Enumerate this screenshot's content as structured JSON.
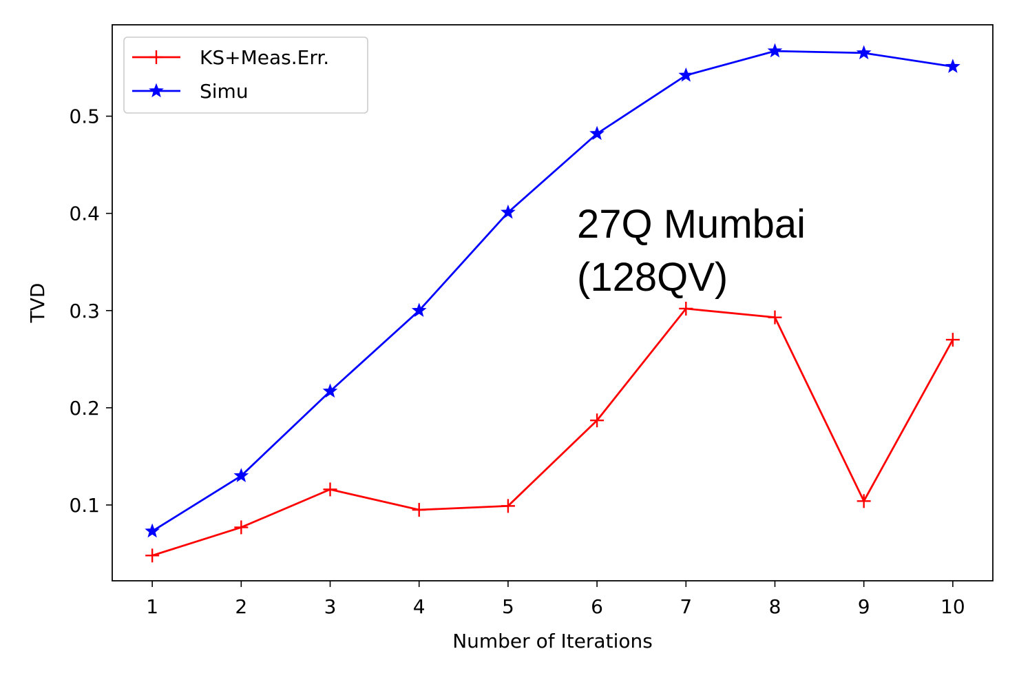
{
  "chart_data": {
    "type": "line",
    "title": "",
    "xlabel": "Number of Iterations",
    "ylabel": "TVD",
    "x": [
      1,
      2,
      3,
      4,
      5,
      6,
      7,
      8,
      9,
      10
    ],
    "xticks": [
      1,
      2,
      3,
      4,
      5,
      6,
      7,
      8,
      9,
      10
    ],
    "yticks": [
      0.1,
      0.2,
      0.3,
      0.4,
      0.5
    ],
    "xlim": [
      0.55,
      10.45
    ],
    "ylim": [
      0.022,
      0.594
    ],
    "grid": false,
    "legend_position": "top-left",
    "series": [
      {
        "name": "KS+Meas.Err.",
        "color": "#ff0000",
        "marker": "plus",
        "values": [
          0.048,
          0.077,
          0.116,
          0.095,
          0.099,
          0.187,
          0.302,
          0.293,
          0.104,
          0.27
        ]
      },
      {
        "name": "Simu",
        "color": "#0000ff",
        "marker": "star",
        "values": [
          0.073,
          0.13,
          0.217,
          0.3,
          0.401,
          0.482,
          0.542,
          0.567,
          0.565,
          0.551
        ]
      }
    ],
    "annotation": {
      "lines": [
        "27Q Mumbai",
        "(128QV)"
      ]
    }
  }
}
